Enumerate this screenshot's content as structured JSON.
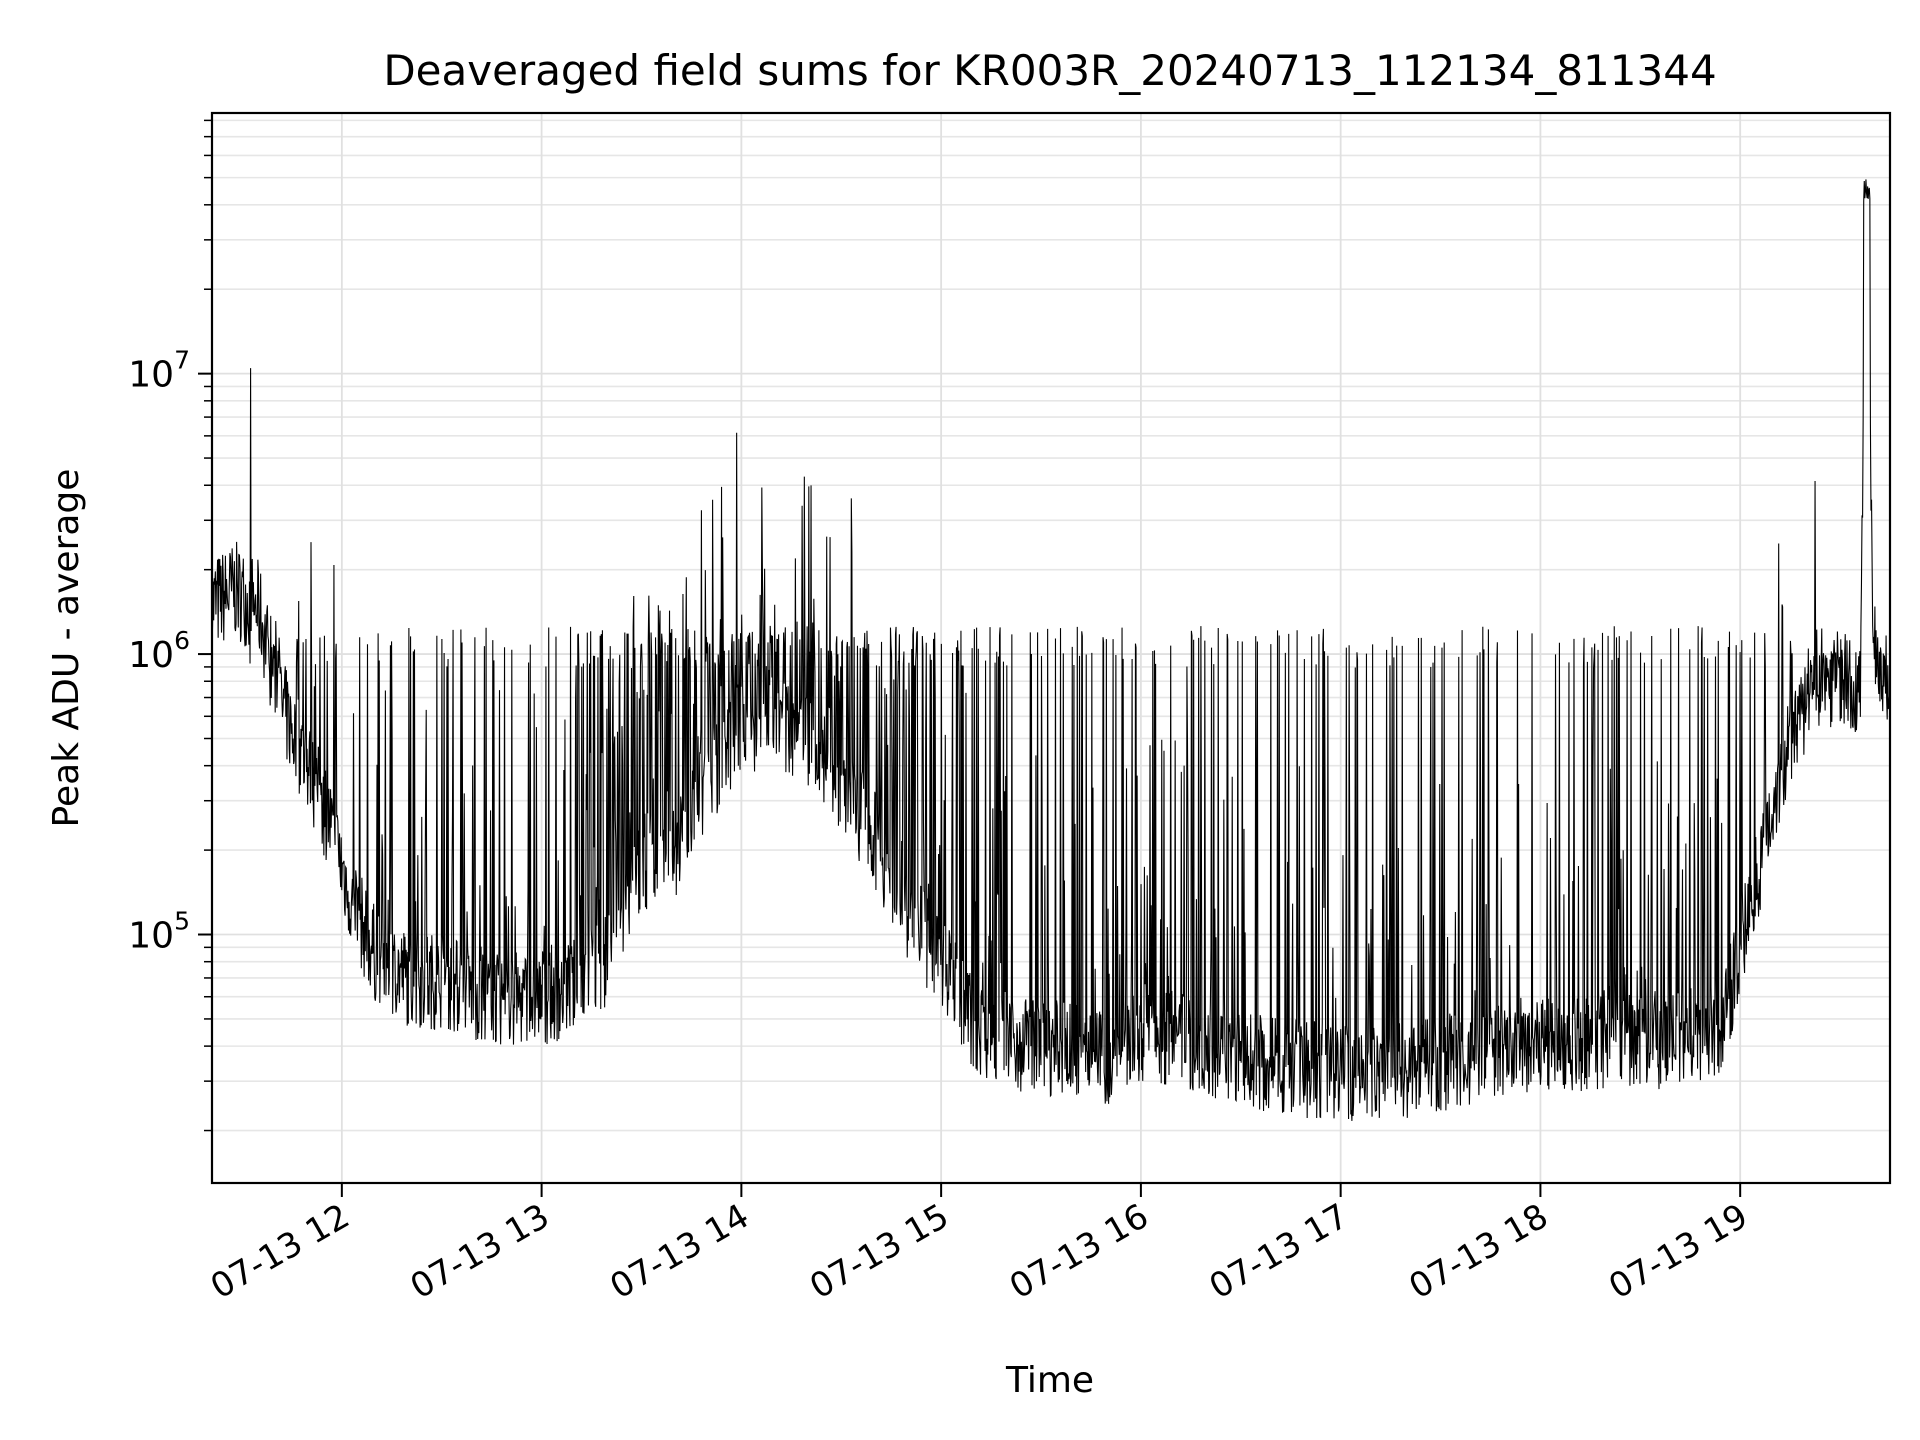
{
  "chart_data": {
    "type": "line",
    "title": "Deaveraged field sums for KR003R_20240713_112134_811344",
    "xlabel": "Time",
    "ylabel": "Peak ADU - average",
    "x_tick_labels": [
      "07-13 12",
      "07-13 13",
      "07-13 14",
      "07-13 15",
      "07-13 16",
      "07-13 17",
      "07-13 18",
      "07-13 19"
    ],
    "x_ticks": [
      "2024-07-13 12:00",
      "2024-07-13 13:00",
      "2024-07-13 14:00",
      "2024-07-13 15:00",
      "2024-07-13 16:00",
      "2024-07-13 17:00",
      "2024-07-13 18:00",
      "2024-07-13 19:00"
    ],
    "xlim": [
      "2024-07-13 11:21",
      "2024-07-13 19:45"
    ],
    "y_scale": "log",
    "ylim": [
      13000,
      85000000
    ],
    "y_tick_labels": [
      {
        "base": "10",
        "exp": "5",
        "value": 100000
      },
      {
        "base": "10",
        "exp": "6",
        "value": 1000000
      },
      {
        "base": "10",
        "exp": "7",
        "value": 10000000
      }
    ],
    "grid": true,
    "line_color": "#000000",
    "series": [
      {
        "x": [
          "2024-07-13 11:21",
          "2024-07-13 11:28",
          "2024-07-13 11:35",
          "2024-07-13 11:42",
          "2024-07-13 11:49",
          "2024-07-13 11:56",
          "2024-07-13 12:03",
          "2024-07-13 12:10",
          "2024-07-13 12:20",
          "2024-07-13 12:30",
          "2024-07-13 12:40",
          "2024-07-13 12:50",
          "2024-07-13 13:00",
          "2024-07-13 13:10",
          "2024-07-13 13:20",
          "2024-07-13 13:30",
          "2024-07-13 13:40",
          "2024-07-13 13:50",
          "2024-07-13 14:00",
          "2024-07-13 14:10",
          "2024-07-13 14:20",
          "2024-07-13 14:30",
          "2024-07-13 14:40",
          "2024-07-13 14:50",
          "2024-07-13 15:00",
          "2024-07-13 15:10",
          "2024-07-13 15:20",
          "2024-07-13 15:30",
          "2024-07-13 15:40",
          "2024-07-13 15:50",
          "2024-07-13 16:00",
          "2024-07-13 16:10",
          "2024-07-13 16:20",
          "2024-07-13 16:30",
          "2024-07-13 16:40",
          "2024-07-13 16:50",
          "2024-07-13 17:00",
          "2024-07-13 17:10",
          "2024-07-13 17:20",
          "2024-07-13 17:30",
          "2024-07-13 17:40",
          "2024-07-13 17:50",
          "2024-07-13 18:00",
          "2024-07-13 18:10",
          "2024-07-13 18:20",
          "2024-07-13 18:30",
          "2024-07-13 18:40",
          "2024-07-13 18:50",
          "2024-07-13 18:55",
          "2024-07-13 19:00",
          "2024-07-13 19:05",
          "2024-07-13 19:10",
          "2024-07-13 19:15",
          "2024-07-13 19:20",
          "2024-07-13 19:25",
          "2024-07-13 19:30",
          "2024-07-13 19:33",
          "2024-07-13 19:36",
          "2024-07-13 19:38",
          "2024-07-13 19:40",
          "2024-07-13 19:42",
          "2024-07-13 19:45"
        ],
        "baseline": [
          1500000,
          1700000,
          1450000,
          650000,
          420000,
          260000,
          130000,
          85000,
          70000,
          68000,
          62000,
          58000,
          60000,
          65000,
          80000,
          180000,
          200000,
          350000,
          550000,
          580000,
          500000,
          350000,
          220000,
          120000,
          80000,
          48000,
          42000,
          40000,
          38000,
          36000,
          45000,
          43000,
          40000,
          36000,
          34000,
          33000,
          32000,
          32000,
          33000,
          34000,
          36000,
          38000,
          40000,
          40000,
          42000,
          42000,
          42000,
          45000,
          48000,
          90000,
          160000,
          300000,
          450000,
          650000,
          800000,
          850000,
          750000,
          700000,
          48000000,
          1200000,
          900000,
          800000
        ]
      }
    ]
  }
}
